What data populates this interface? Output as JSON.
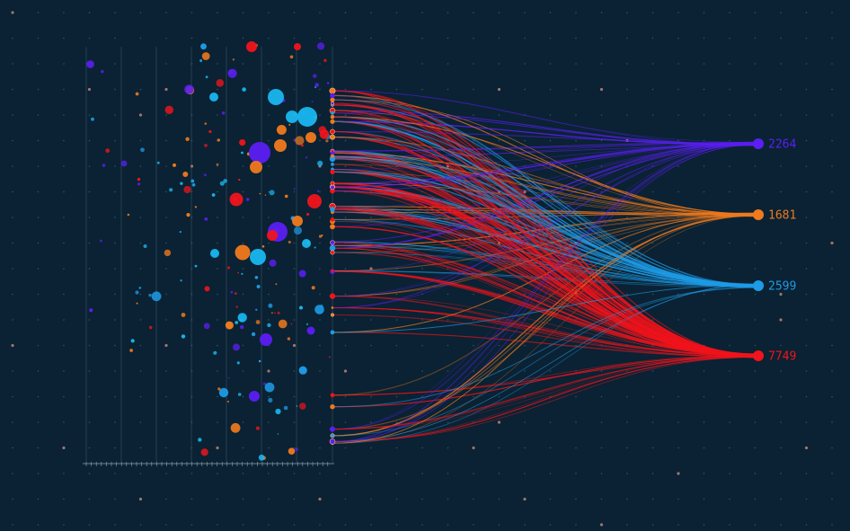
{
  "chart_data": {
    "type": "sankey-scatter",
    "title": "",
    "xlabel": "",
    "ylabel": "",
    "legend": "none",
    "grid": true,
    "tick_labels": [
      "",
      "",
      "",
      "",
      "",
      "",
      "",
      ""
    ],
    "targets": [
      {
        "name": "purple",
        "value": 2264,
        "color": "#5b1ff2"
      },
      {
        "name": "orange",
        "value": 1681,
        "color": "#f07a1d"
      },
      {
        "name": "blue",
        "value": 2599,
        "color": "#1e9be6"
      },
      {
        "name": "red",
        "value": 7749,
        "color": "#f0141c"
      }
    ],
    "target_labels": [
      "2264",
      "1681",
      "2599",
      "7749"
    ],
    "seed": 7,
    "bubble_count": 170,
    "flow_count": 260
  }
}
